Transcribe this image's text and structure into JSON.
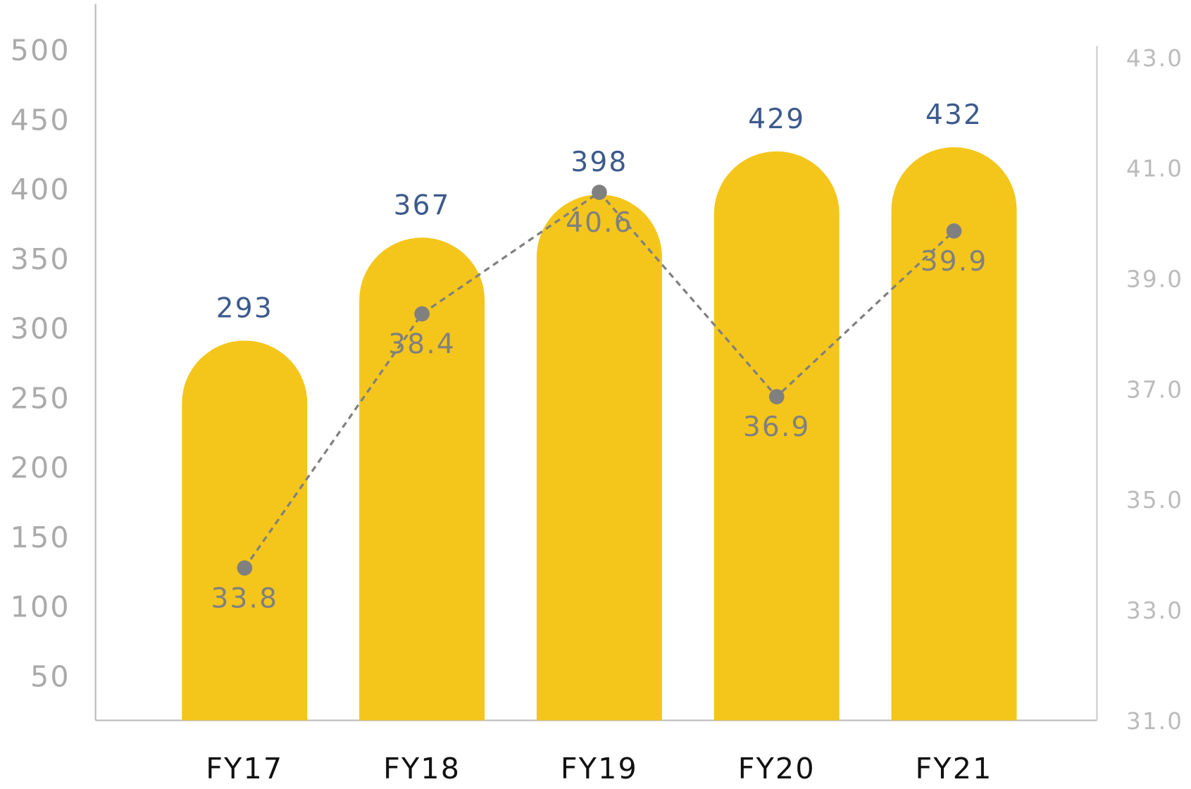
{
  "chart_data": {
    "type": "bar+line",
    "categories": [
      "FY17",
      "FY18",
      "FY19",
      "FY20",
      "FY21"
    ],
    "series": [
      {
        "type": "bar",
        "color": "#f4c61b",
        "label_color": "#3d5a8c",
        "values": [
          293,
          367,
          398,
          429,
          432
        ]
      },
      {
        "type": "line",
        "axis": "y2",
        "color": "#808080",
        "values": [
          33.8,
          38.4,
          40.6,
          36.9,
          39.9
        ]
      }
    ],
    "ylim": [
      20,
      535
    ],
    "yticks": [
      50,
      100,
      150,
      200,
      250,
      300,
      350,
      400,
      450,
      500
    ],
    "y2lim": [
      31,
      43
    ],
    "y2ticks": [
      {
        "value": 31,
        "label": "31.0"
      },
      {
        "value": 33,
        "label": "33.0"
      },
      {
        "value": 35,
        "label": "35.0"
      },
      {
        "value": 37,
        "label": "37.0"
      },
      {
        "value": 39,
        "label": "39.0"
      },
      {
        "value": 41,
        "label": "41.0"
      },
      {
        "value": 43,
        "label": "43.0"
      }
    ]
  }
}
